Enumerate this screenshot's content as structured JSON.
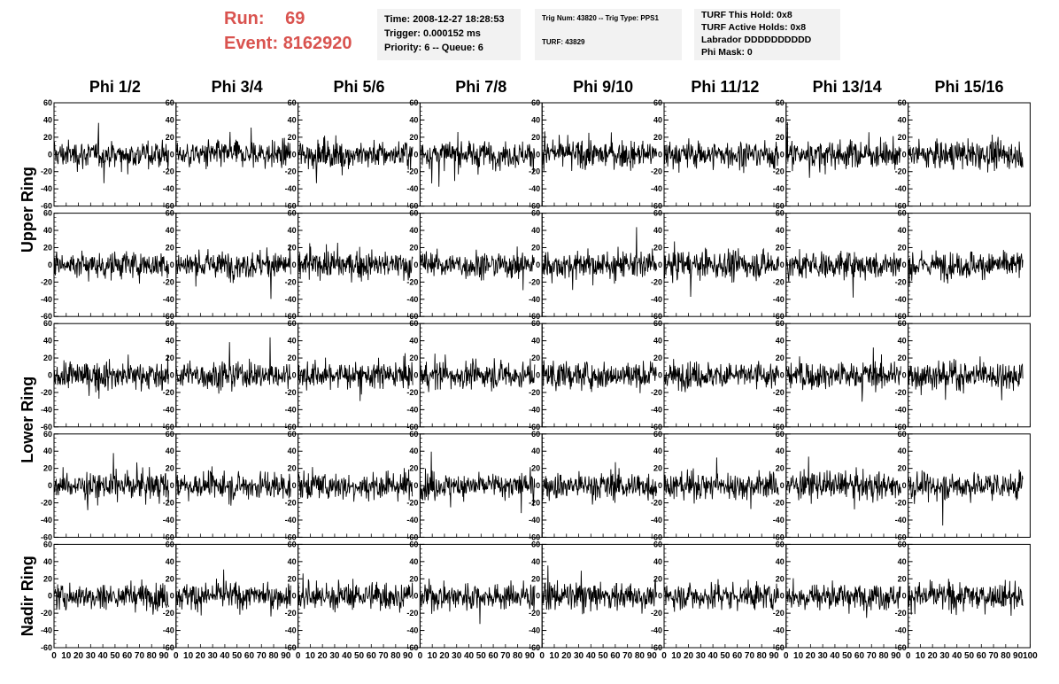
{
  "header": {
    "run_label": "Run:",
    "run_value": "69",
    "event_label": "Event:",
    "event_value": "8162920",
    "time_box": [
      "Time: 2008-12-27 18:28:53",
      "Trigger: 0.000152 ms",
      "Priority: 6 -- Queue: 6"
    ],
    "trig_box": [
      "Trig Num: 43820 -- Trig Type: PPS1",
      "TURF: 43829"
    ],
    "turf_box": [
      "TURF This Hold: 0x8",
      "TURF Active Holds: 0x8",
      "Labrador DDDDDDDDDD",
      "Phi Mask: 0"
    ]
  },
  "chart_data": {
    "type": "line",
    "columns": [
      "Phi 1/2",
      "Phi 3/4",
      "Phi 5/6",
      "Phi 7/8",
      "Phi 9/10",
      "Phi 11/12",
      "Phi 13/14",
      "Phi 15/16"
    ],
    "ring_labels": [
      "Upper Ring",
      "Lower Ring",
      "Nadir Ring"
    ],
    "rows": 5,
    "xlim": [
      0,
      100
    ],
    "ylim": [
      -60,
      60
    ],
    "xticks": [
      0,
      10,
      20,
      30,
      40,
      50,
      60,
      70,
      80,
      90,
      100
    ],
    "yticks": [
      -60,
      -40,
      -20,
      0,
      20,
      40,
      60
    ],
    "samples_per_trace": 256,
    "typical_amplitude": 15,
    "line_color": "#000000"
  }
}
